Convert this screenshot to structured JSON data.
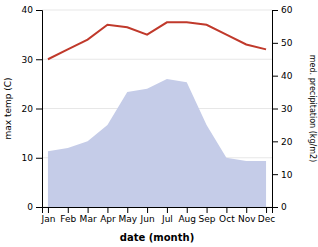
{
  "chart_data": {
    "type": "line",
    "categories": [
      "Jan",
      "Feb",
      "Mar",
      "Apr",
      "May",
      "Jun",
      "Jul",
      "Aug",
      "Sep",
      "Oct",
      "Nov",
      "Dec"
    ],
    "series": [
      {
        "type": "area",
        "axis": "y2",
        "color": "#c5cce8",
        "values": [
          17,
          18,
          20,
          25,
          35,
          36,
          39,
          38,
          25,
          15,
          14,
          14
        ]
      },
      {
        "type": "line",
        "color": "#c0392b",
        "values": [
          30,
          32,
          34,
          37,
          36.5,
          35,
          37.5,
          37.5,
          37,
          35,
          33,
          32
        ]
      }
    ],
    "xlabel": "date (month)",
    "ylabel": "max temp (C)",
    "y2label": "med. precipitation (kg/m2)",
    "ylim": [
      0,
      40
    ],
    "yticks": [
      0,
      10,
      20,
      30,
      40
    ],
    "y2lim": [
      0,
      60
    ],
    "y2ticks": [
      0,
      10,
      20,
      30,
      40,
      50,
      60
    ],
    "grid": true
  }
}
